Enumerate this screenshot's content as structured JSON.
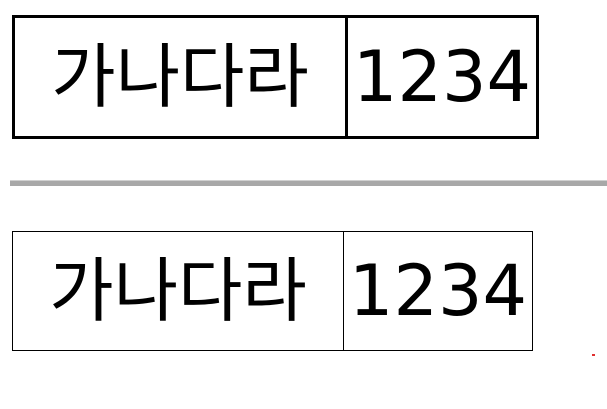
{
  "tables": {
    "top": {
      "cell1": "가나다라",
      "cell2": "1234"
    },
    "bottom": {
      "cell1": "가나다라",
      "cell2": "1234"
    }
  }
}
